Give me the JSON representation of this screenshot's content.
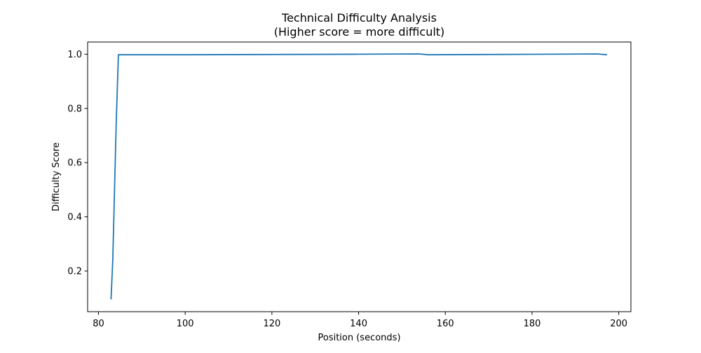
{
  "chart_data": {
    "type": "line",
    "title": "Technical Difficulty Analysis",
    "subtitle": "(Higher score = more difficult)",
    "xlabel": "Position (seconds)",
    "ylabel": "Difficulty Score",
    "xlim": [
      77.5,
      202.8
    ],
    "ylim": [
      0.05,
      1.045
    ],
    "xticks": [
      80,
      100,
      120,
      140,
      160,
      180,
      200
    ],
    "xtick_labels": [
      "80",
      "100",
      "120",
      "140",
      "160",
      "180",
      "200"
    ],
    "yticks": [
      0.2,
      0.4,
      0.6,
      0.8,
      1.0
    ],
    "ytick_labels": [
      "0.2",
      "0.4",
      "0.6",
      "0.8",
      "1.0"
    ],
    "grid": false,
    "series": [
      {
        "color": "#1f77b4",
        "x": [
          82.9,
          83.3,
          84.1,
          84.6,
          100,
          120,
          140,
          154,
          156,
          170,
          185,
          195,
          197.3
        ],
        "y": [
          0.095,
          0.24,
          0.75,
          0.998,
          0.998,
          0.999,
          1.0,
          1.001,
          0.998,
          0.999,
          1.0,
          1.001,
          0.998
        ]
      }
    ]
  }
}
